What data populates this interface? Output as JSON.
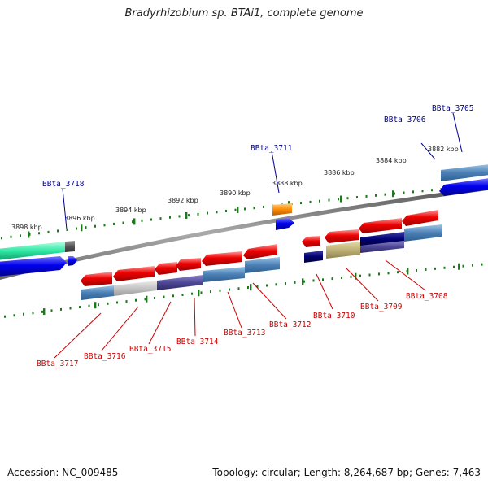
{
  "title": "Bradyrhizobium sp. BTAi1, complete genome",
  "footer": {
    "accession": "Accession: NC_009485",
    "topology": "Topology: circular; Length: 8,264,687 bp; Genes: 7,463"
  },
  "colors": {
    "forward_label": "#00008b",
    "reverse_label": "#cc0000",
    "ticks": "#1a7a1a",
    "backbone": "#777777"
  },
  "kbp_ticks": [
    "3898 kbp",
    "3896 kbp",
    "3894 kbp",
    "3892 kbp",
    "3890 kbp",
    "3888 kbp",
    "3886 kbp",
    "3884 kbp",
    "3882 kbp"
  ],
  "genes_forward": [
    "BBta_3718",
    "BBta_3711",
    "BBta_3706",
    "BBta_3705"
  ],
  "genes_reverse": [
    "BBta_3717",
    "BBta_3716",
    "BBta_3715",
    "BBta_3714",
    "BBta_3713",
    "BBta_3712",
    "BBta_3710",
    "BBta_3709",
    "BBta_3708"
  ]
}
